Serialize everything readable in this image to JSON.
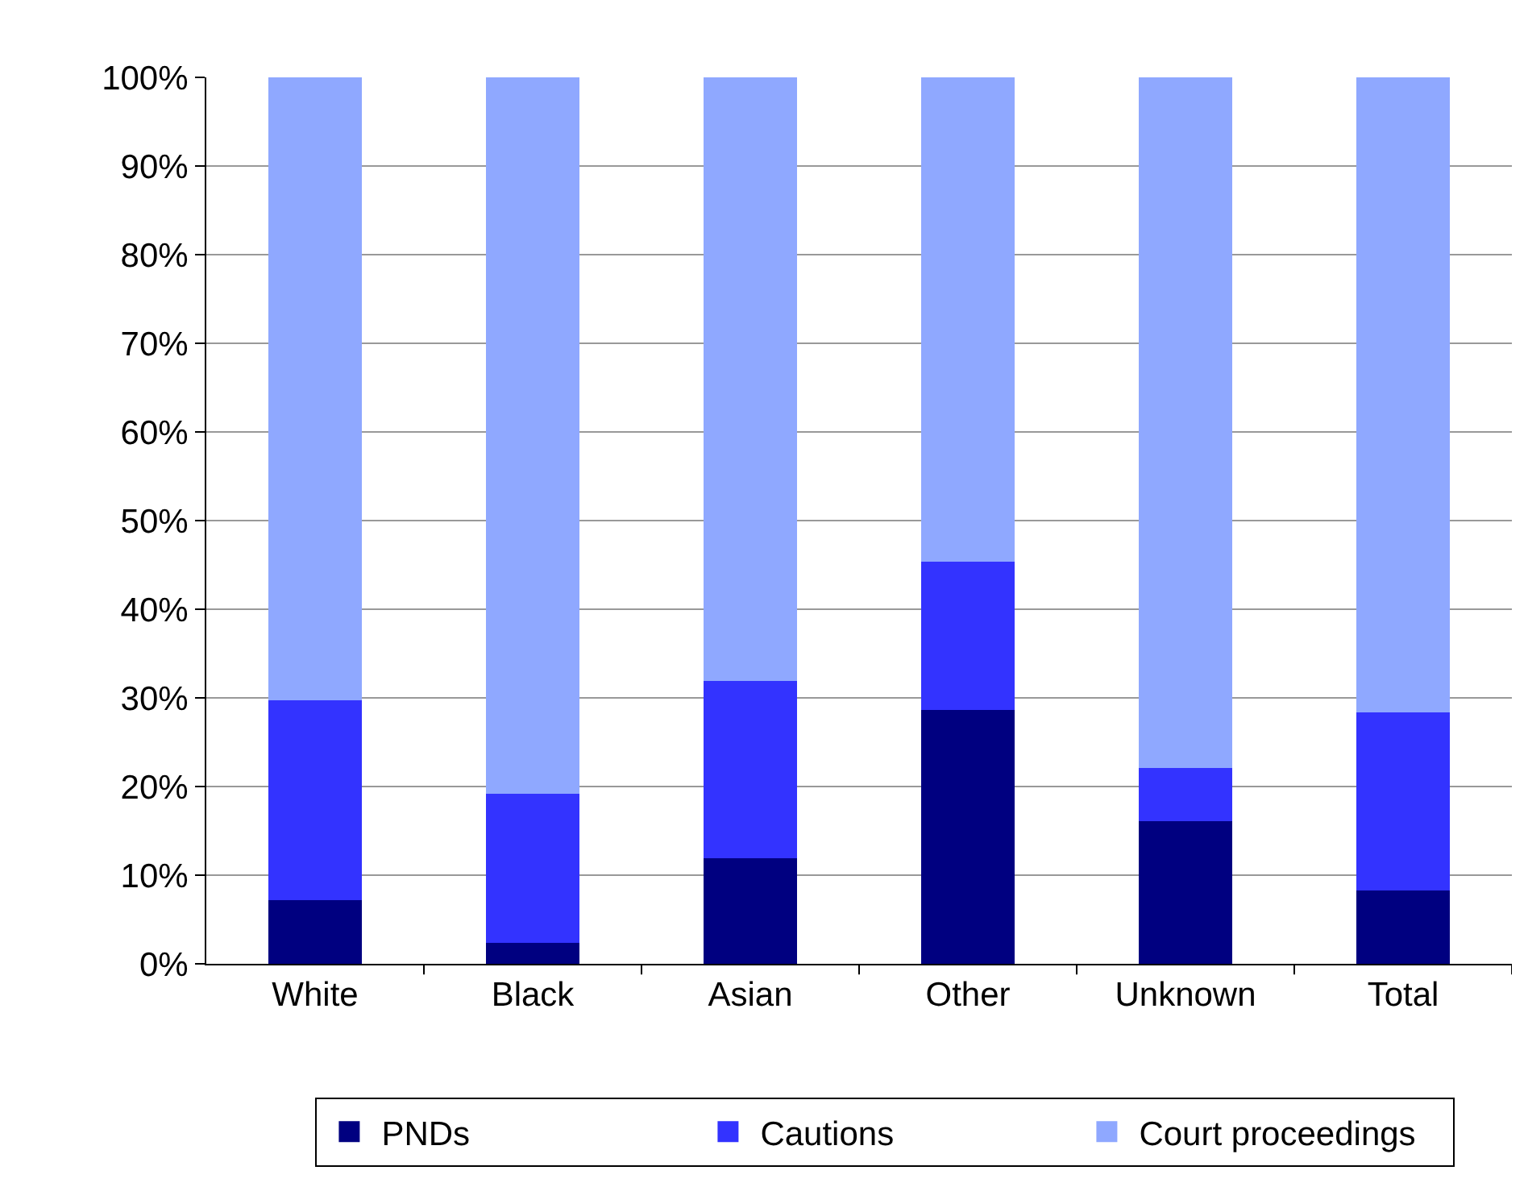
{
  "chart_data": {
    "type": "bar",
    "stacked": true,
    "categories": [
      "White",
      "Black",
      "Asian",
      "Other",
      "Unknown",
      "Total"
    ],
    "series": [
      {
        "name": "PNDs",
        "color": "#000080",
        "values": [
          7.3,
          2.5,
          12.0,
          28.7,
          16.2,
          8.4
        ]
      },
      {
        "name": "Cautions",
        "color": "#3333ff",
        "values": [
          22.5,
          16.8,
          20.0,
          16.8,
          6.0,
          20.1
        ]
      },
      {
        "name": "Court proceedings",
        "color": "#8fa8ff",
        "values": [
          70.2,
          80.7,
          68.0,
          54.5,
          77.8,
          71.5
        ]
      }
    ],
    "ylim": [
      0,
      100
    ],
    "yticks": [
      {
        "value": 0,
        "label": "0%"
      },
      {
        "value": 10,
        "label": "10%"
      },
      {
        "value": 20,
        "label": "20%"
      },
      {
        "value": 30,
        "label": "30%"
      },
      {
        "value": 40,
        "label": "40%"
      },
      {
        "value": 50,
        "label": "50%"
      },
      {
        "value": 60,
        "label": "60%"
      },
      {
        "value": 70,
        "label": "70%"
      },
      {
        "value": 80,
        "label": "80%"
      },
      {
        "value": 90,
        "label": "90%"
      },
      {
        "value": 100,
        "label": "100%"
      }
    ],
    "grid": "y",
    "legend": "bottom"
  }
}
